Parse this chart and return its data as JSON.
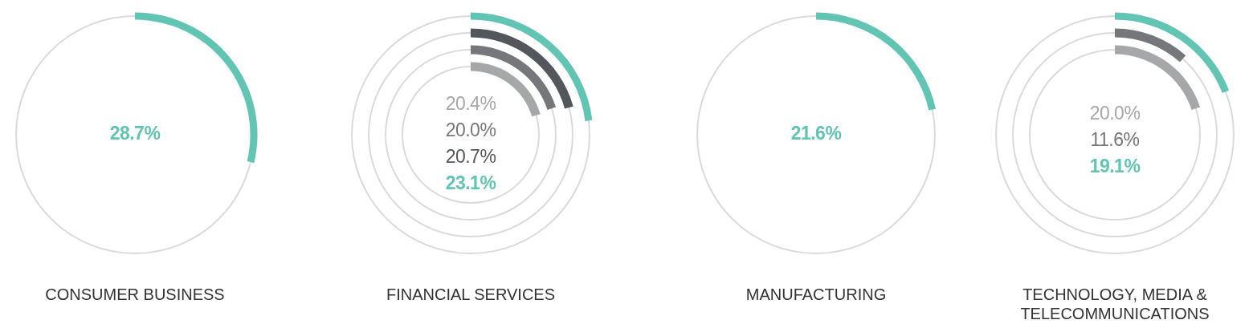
{
  "chart_data": [
    {
      "type": "other",
      "title": "CONSUMER BUSINESS",
      "categories": [
        null
      ],
      "values": [
        28.7
      ],
      "value_labels": [
        "28.7%"
      ],
      "colors": [
        "#62c4b3"
      ]
    },
    {
      "type": "other",
      "title": "FINANCIAL SERVICES",
      "categories": [
        null,
        null,
        null,
        null
      ],
      "values": [
        20.4,
        20.0,
        20.7,
        23.1
      ],
      "value_labels": [
        "20.4%",
        "20.0%",
        "20.7%",
        "23.1%"
      ],
      "colors": [
        "#a5a7a8",
        "#75777b",
        "#53565a",
        "#62c4b3"
      ]
    },
    {
      "type": "other",
      "title": "MANUFACTURING",
      "categories": [
        null
      ],
      "values": [
        21.6
      ],
      "value_labels": [
        "21.6%"
      ],
      "colors": [
        "#62c4b3"
      ]
    },
    {
      "type": "other",
      "title": "TECHNOLOGY, MEDIA & TELECOMMUNICATIONS",
      "categories": [
        null,
        null,
        null
      ],
      "values": [
        20.0,
        11.6,
        19.1
      ],
      "value_labels": [
        "20.0%",
        "11.6%",
        "19.1%"
      ],
      "colors": [
        "#a5a7a8",
        "#75777b",
        "#62c4b3"
      ]
    }
  ]
}
